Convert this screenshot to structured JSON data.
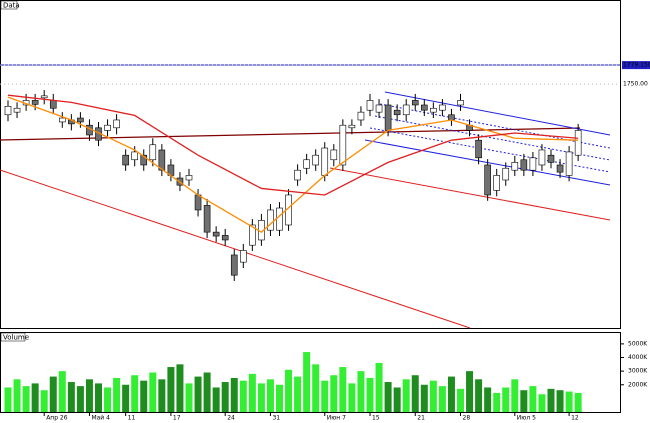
{
  "chart_data": {
    "type": "candlestick",
    "title": "Data",
    "categories": [
      null,
      null,
      null,
      null,
      "Апр 26",
      null,
      null,
      null,
      null,
      "Май 4",
      null,
      null,
      null,
      "11",
      null,
      null,
      null,
      null,
      "17",
      null,
      null,
      null,
      null,
      null,
      "24",
      null,
      null,
      null,
      null,
      "31",
      null,
      null,
      null,
      null,
      null,
      "Июн 7",
      null,
      null,
      null,
      null,
      "15",
      null,
      null,
      null,
      null,
      "21",
      null,
      null,
      null,
      null,
      "28",
      null,
      null,
      null,
      null,
      null,
      "Июл 5",
      null,
      null,
      null,
      null,
      null,
      "12",
      null
    ],
    "open": [
      1703,
      1707,
      1718,
      1725,
      1729,
      1725,
      1692,
      1695,
      1698,
      1687,
      1683,
      1679,
      1683,
      1641,
      1634,
      1641,
      1634,
      1649,
      1626,
      1606,
      1603,
      1580,
      1564,
      1523,
      1518,
      1488,
      1477,
      1503,
      1511,
      1526,
      1526,
      1534,
      1603,
      1621,
      1626,
      1610,
      1634,
      1626,
      1683,
      1695,
      1710,
      1707,
      1718,
      1710,
      1703,
      1725,
      1718,
      1707,
      1710,
      1703,
      1718,
      1687,
      1664,
      1626,
      1587,
      1603,
      1618,
      1634,
      1618,
      1626,
      1641,
      1626,
      1610,
      1641
    ],
    "high": [
      1725,
      1722,
      1735,
      1735,
      1741,
      1735,
      1707,
      1704,
      1707,
      1696,
      1692,
      1696,
      1704,
      1650,
      1655,
      1650,
      1667,
      1658,
      1635,
      1615,
      1620,
      1589,
      1574,
      1532,
      1528,
      1497,
      1505,
      1543,
      1551,
      1566,
      1569,
      1589,
      1627,
      1643,
      1650,
      1661,
      1658,
      1696,
      1696,
      1716,
      1735,
      1727,
      1727,
      1719,
      1727,
      1735,
      1727,
      1722,
      1727,
      1712,
      1735,
      1696,
      1673,
      1635,
      1620,
      1630,
      1640,
      1643,
      1646,
      1658,
      1650,
      1635,
      1655,
      1689
    ],
    "low": [
      1693,
      1698,
      1709,
      1710,
      1719,
      1704,
      1683,
      1679,
      1683,
      1663,
      1655,
      1670,
      1673,
      1617,
      1624,
      1617,
      1624,
      1609,
      1601,
      1586,
      1594,
      1547,
      1514,
      1508,
      1502,
      1448,
      1468,
      1494,
      1502,
      1517,
      1517,
      1525,
      1594,
      1612,
      1617,
      1601,
      1624,
      1617,
      1673,
      1686,
      1701,
      1698,
      1670,
      1693,
      1693,
      1709,
      1701,
      1698,
      1701,
      1686,
      1709,
      1670,
      1627,
      1571,
      1578,
      1594,
      1609,
      1609,
      1609,
      1617,
      1621,
      1606,
      1601,
      1632
    ],
    "close": [
      1716,
      1713,
      1725,
      1719,
      1732,
      1713,
      1698,
      1689,
      1692,
      1672,
      1664,
      1687,
      1695,
      1626,
      1646,
      1626,
      1657,
      1618,
      1610,
      1595,
      1610,
      1557,
      1523,
      1517,
      1511,
      1457,
      1495,
      1534,
      1541,
      1557,
      1560,
      1580,
      1618,
      1634,
      1641,
      1652,
      1649,
      1687,
      1687,
      1707,
      1725,
      1718,
      1679,
      1703,
      1718,
      1718,
      1710,
      1713,
      1718,
      1695,
      1725,
      1679,
      1637,
      1580,
      1610,
      1621,
      1630,
      1618,
      1637,
      1649,
      1630,
      1615,
      1646,
      1679
    ],
    "up_color": "#ffffff",
    "down_color": "#707070",
    "ylim": [
      1376,
      1879
    ],
    "yticks": [
      {
        "value": 1779.15,
        "label": "1779.1500"
      },
      {
        "value": 1750,
        "label": "1750.00"
      }
    ],
    "grid": true,
    "overlays": [
      {
        "color": "#ff8c00",
        "x": [
          0,
          7,
          14,
          21,
          28,
          35,
          42,
          49,
          56,
          63
        ],
        "values": [
          1730,
          1695,
          1649,
          1580,
          1523,
          1610,
          1679,
          1695,
          1667,
          1664
        ]
      },
      {
        "color": "#e02020",
        "x": [
          0,
          7,
          14,
          21,
          28,
          35,
          42,
          49,
          56,
          63
        ],
        "values": [
          1733,
          1722,
          1702,
          1641,
          1590,
          1580,
          1630,
          1664,
          1675,
          1667
        ]
      }
    ],
    "volume": {
      "title": "Volume",
      "values": [
        1800,
        2400,
        1900,
        2100,
        1600,
        2600,
        3000,
        2200,
        1900,
        2400,
        2100,
        1800,
        2500,
        2000,
        2700,
        2300,
        2900,
        2400,
        3300,
        3500,
        2100,
        2600,
        2900,
        1800,
        2200,
        2500,
        2300,
        2800,
        2100,
        2400,
        2000,
        3100,
        2600,
        4400,
        3500,
        2300,
        2700,
        3300,
        2100,
        3000,
        2500,
        3600,
        2200,
        1800,
        2400,
        2700,
        2000,
        2300,
        1900,
        2600,
        1700,
        3000,
        2400,
        1800,
        1400,
        1800,
        2400,
        1600,
        1900,
        1300,
        1700,
        1600,
        1500,
        1400
      ],
      "up_color": "#33ee33",
      "down_color": "#1e8c1e",
      "ylim": [
        0,
        5800
      ],
      "yticks": [
        {
          "value": 5000,
          "label": "5000K"
        },
        {
          "value": 4000,
          "label": "4000K"
        },
        {
          "value": 3000,
          "label": "3000K"
        },
        {
          "value": 2000,
          "label": "2000K"
        }
      ]
    }
  }
}
